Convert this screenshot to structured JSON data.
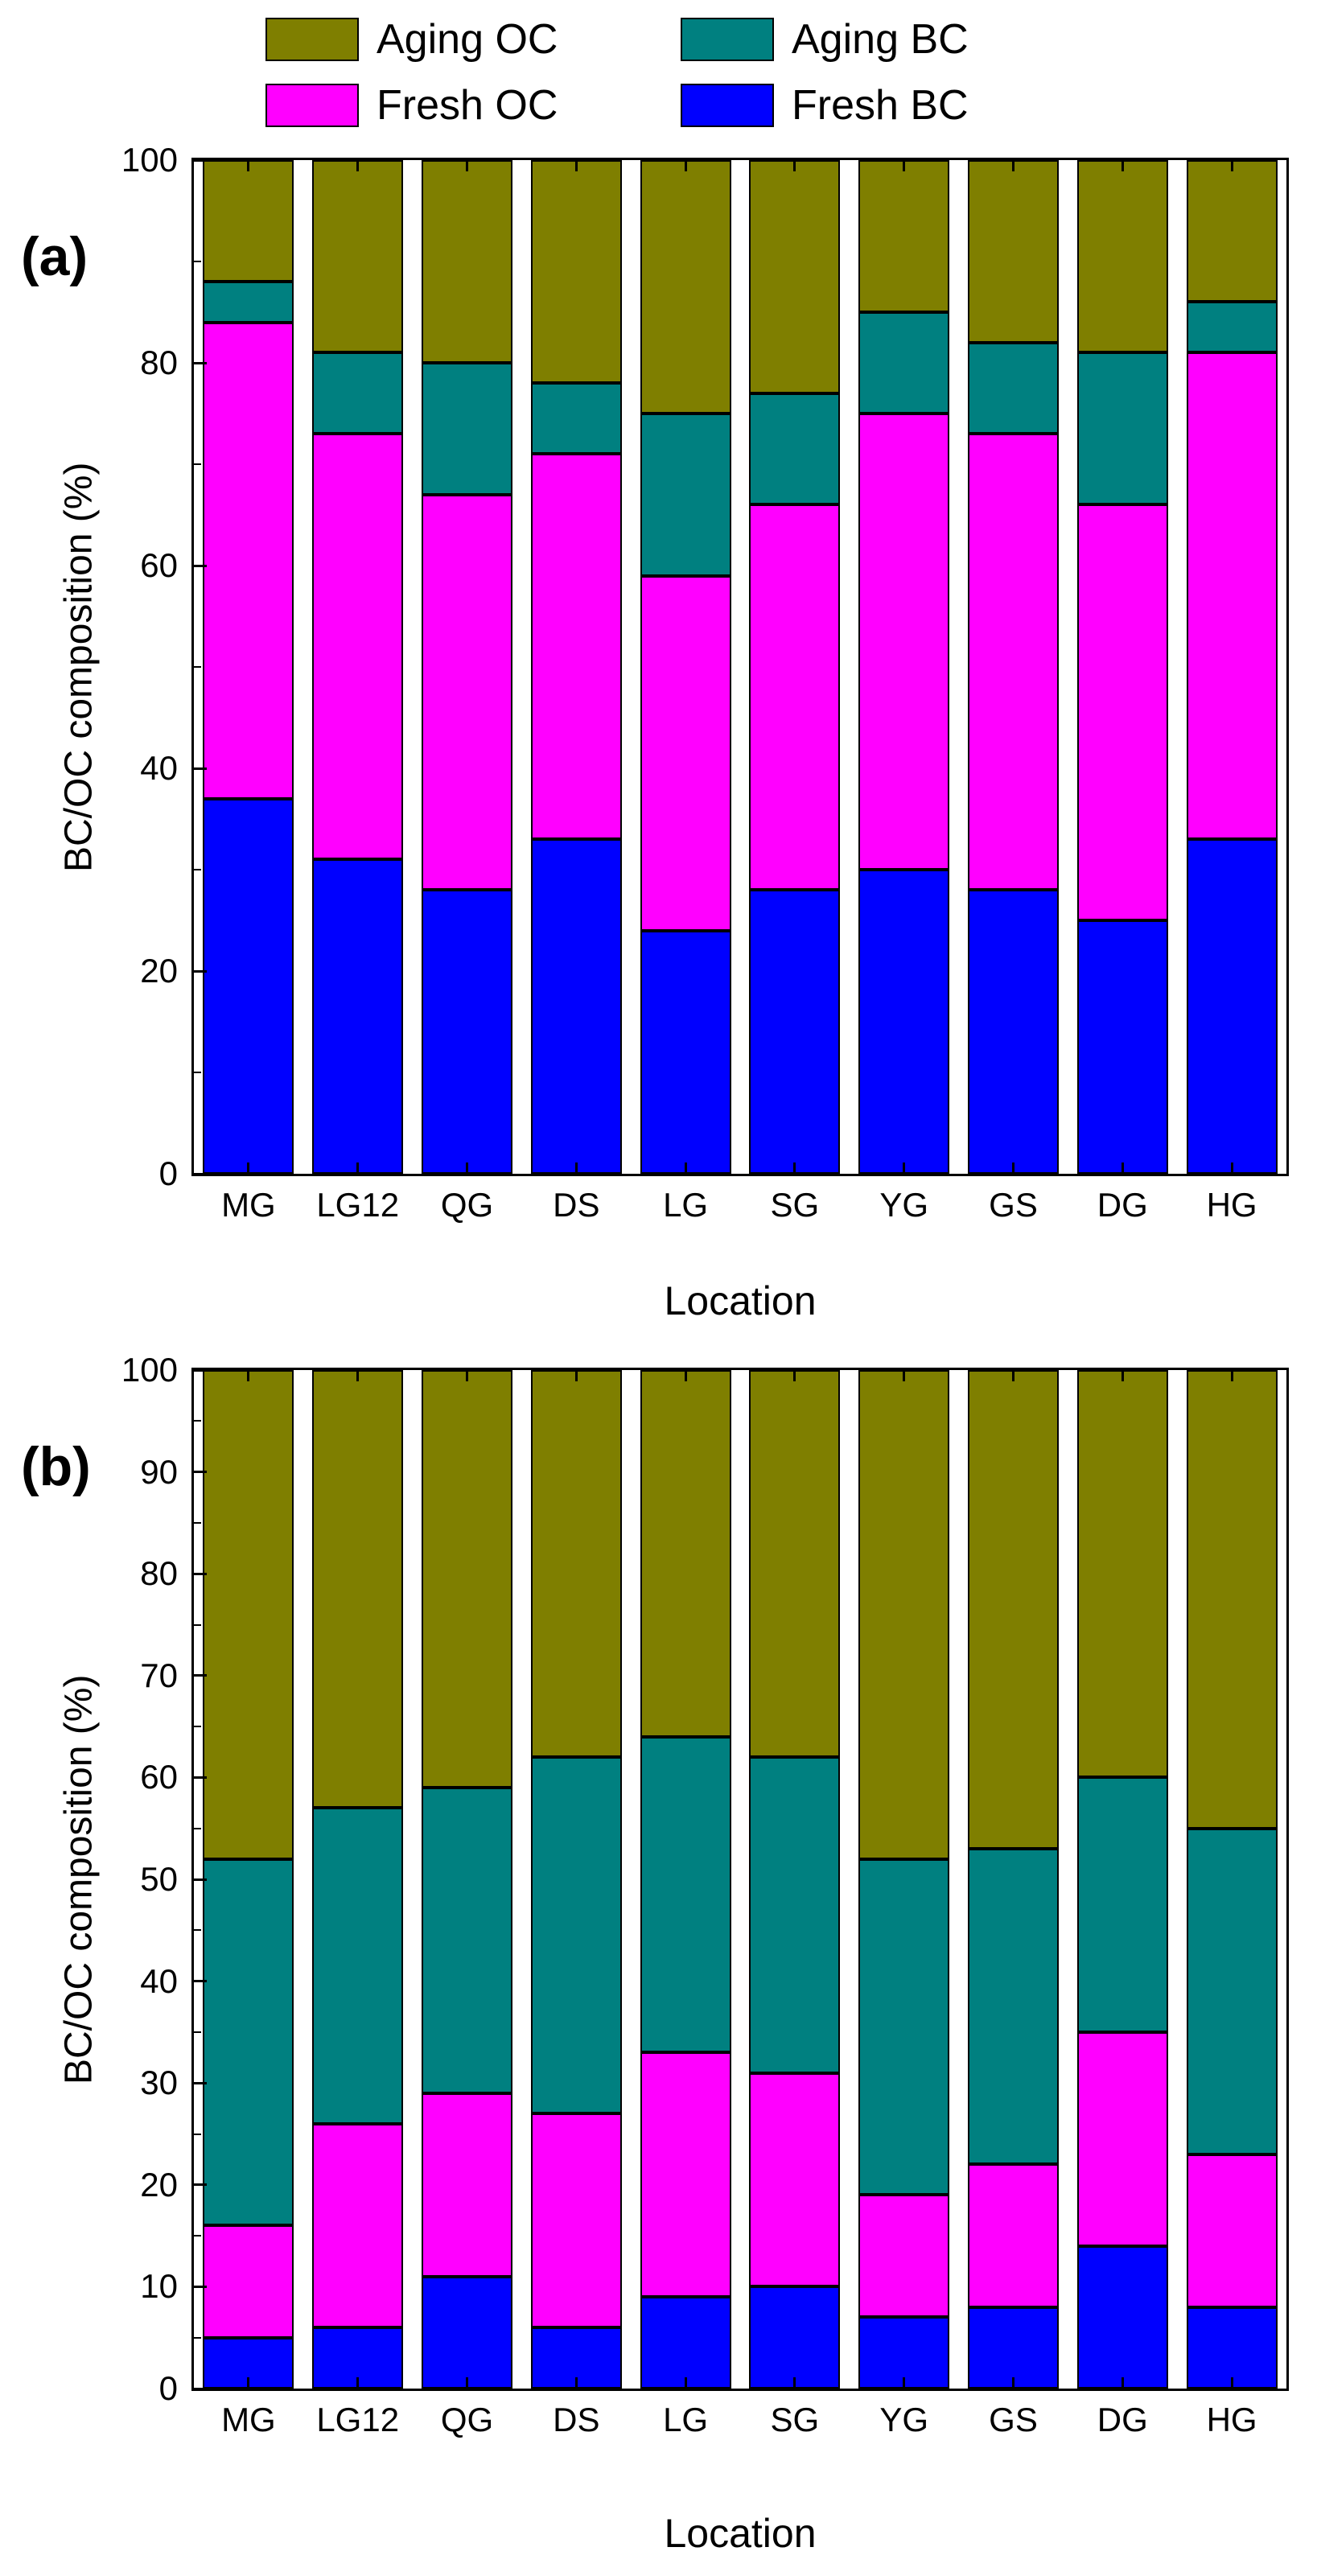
{
  "figure": {
    "background": "#ffffff"
  },
  "legend": {
    "items": [
      {
        "label": "Aging OC",
        "color": "#7f7f00"
      },
      {
        "label": "Aging BC",
        "color": "#008080"
      },
      {
        "label": "Fresh OC",
        "color": "#ff00ff"
      },
      {
        "label": "Fresh BC",
        "color": "#0000ff"
      }
    ]
  },
  "chart_data": [
    {
      "type": "bar",
      "stacked": true,
      "panel_label": "(a)",
      "title": "",
      "xlabel": "Location",
      "ylabel": "BC/OC composition  (%)",
      "ylim": [
        0,
        100
      ],
      "ytick_step": 20,
      "yminor_step": 10,
      "legend_position": "top",
      "grid": false,
      "categories": [
        "MG",
        "LG12",
        "QG",
        "DS",
        "LG",
        "SG",
        "YG",
        "GS",
        "DG",
        "HG"
      ],
      "series": [
        {
          "name": "Fresh BC",
          "color": "#0000ff",
          "values": [
            37,
            31,
            28,
            33,
            24,
            28,
            30,
            28,
            25,
            33
          ]
        },
        {
          "name": "Fresh OC",
          "color": "#ff00ff",
          "values": [
            47,
            42,
            39,
            38,
            35,
            38,
            45,
            45,
            41,
            48
          ]
        },
        {
          "name": "Aging BC",
          "color": "#008080",
          "values": [
            4,
            8,
            13,
            7,
            16,
            11,
            10,
            9,
            15,
            5
          ]
        },
        {
          "name": "Aging OC",
          "color": "#7f7f00",
          "values": [
            12,
            19,
            20,
            22,
            25,
            23,
            15,
            18,
            19,
            14
          ]
        }
      ]
    },
    {
      "type": "bar",
      "stacked": true,
      "panel_label": "(b)",
      "title": "",
      "xlabel": "Location",
      "ylabel": "BC/OC composition  (%)",
      "ylim": [
        0,
        100
      ],
      "ytick_step": 10,
      "yminor_step": 5,
      "legend_position": "top",
      "grid": false,
      "categories": [
        "MG",
        "LG12",
        "QG",
        "DS",
        "LG",
        "SG",
        "YG",
        "GS",
        "DG",
        "HG"
      ],
      "series": [
        {
          "name": "Fresh BC",
          "color": "#0000ff",
          "values": [
            5,
            6,
            11,
            6,
            9,
            10,
            7,
            8,
            14,
            8
          ]
        },
        {
          "name": "Fresh OC",
          "color": "#ff00ff",
          "values": [
            11,
            20,
            18,
            21,
            24,
            21,
            12,
            14,
            21,
            15
          ]
        },
        {
          "name": "Aging BC",
          "color": "#008080",
          "values": [
            36,
            31,
            30,
            35,
            31,
            31,
            33,
            31,
            25,
            32
          ]
        },
        {
          "name": "Aging OC",
          "color": "#7f7f00",
          "values": [
            48,
            43,
            41,
            38,
            36,
            38,
            48,
            47,
            40,
            45
          ]
        }
      ]
    }
  ]
}
